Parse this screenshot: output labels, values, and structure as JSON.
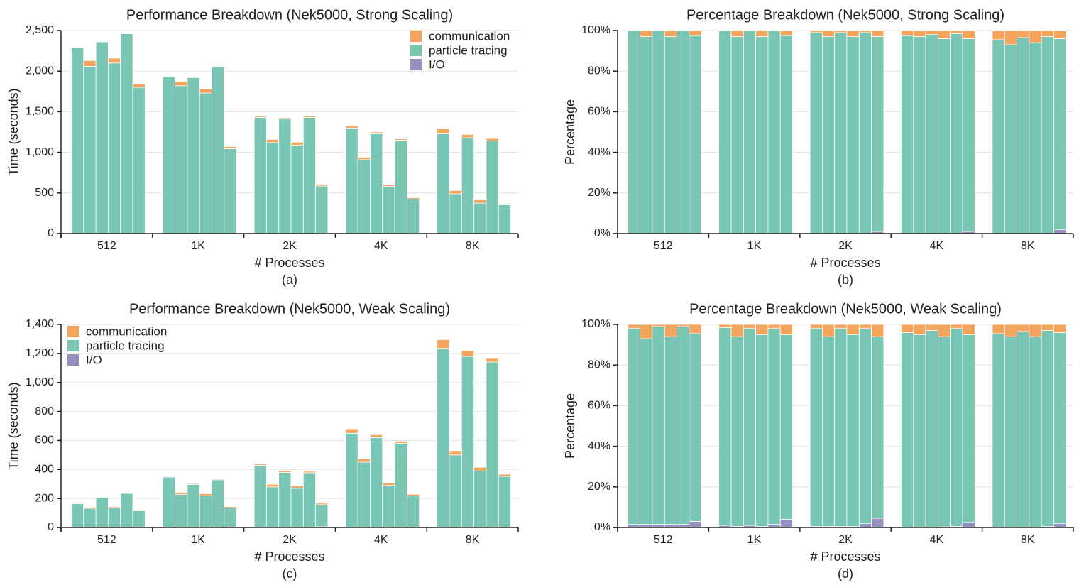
{
  "colors": {
    "communication": "#f5a55b",
    "particle_tracing": "#79c6b5",
    "io": "#9490c0",
    "grid": "#e1e1e1",
    "axis": "#222222"
  },
  "chart_data": [
    {
      "id": "a",
      "type": "bar",
      "stacked": true,
      "title": "Performance Breakdown (Nek5000, Strong Scaling)",
      "xlabel": "# Processes",
      "ylabel": "Time (seconds)",
      "caption": "(a)",
      "ylim": [
        0,
        2500
      ],
      "yticks": [
        0,
        500,
        1000,
        1500,
        2000,
        2500
      ],
      "ytick_labels": [
        "0",
        "500",
        "1,000",
        "1,500",
        "2,000",
        "2,500"
      ],
      "groups": [
        "512",
        "1K",
        "2K",
        "4K",
        "8K"
      ],
      "legend": {
        "position": "top-right",
        "entries": [
          "communication",
          "particle tracing",
          "I/O"
        ]
      },
      "series": [
        {
          "name": "communication",
          "color_key": "communication",
          "values": [
            [
              0,
              70,
              0,
              60,
              0,
              40
            ],
            [
              0,
              50,
              0,
              50,
              0,
              25
            ],
            [
              15,
              40,
              15,
              35,
              15,
              20
            ],
            [
              30,
              30,
              20,
              20,
              15,
              15
            ],
            [
              60,
              40,
              40,
              40,
              30,
              15
            ]
          ]
        },
        {
          "name": "particle tracing",
          "color_key": "particle_tracing",
          "values": [
            [
              2290,
              2060,
              2360,
              2100,
              2460,
              1800
            ],
            [
              1930,
              1820,
              1920,
              1730,
              2050,
              1045
            ],
            [
              1430,
              1120,
              1410,
              1090,
              1430,
              580
            ],
            [
              1300,
              910,
              1230,
              580,
              1150,
              420
            ],
            [
              1230,
              490,
              1180,
              375,
              1140,
              350
            ]
          ]
        },
        {
          "name": "I/O",
          "color_key": "io",
          "values": [
            [
              0,
              0,
              0,
              0,
              0,
              0
            ],
            [
              0,
              0,
              0,
              0,
              0,
              0
            ],
            [
              0,
              0,
              0,
              0,
              0,
              5
            ],
            [
              0,
              0,
              0,
              0,
              0,
              5
            ],
            [
              0,
              0,
              0,
              0,
              0,
              5
            ]
          ]
        }
      ]
    },
    {
      "id": "b",
      "type": "bar",
      "stacked": true,
      "title": "Percentage Breakdown (Nek5000, Strong Scaling)",
      "xlabel": "# Processes",
      "ylabel": "Percentage",
      "caption": "(b)",
      "ylim": [
        0,
        100
      ],
      "yticks": [
        0,
        20,
        40,
        60,
        80,
        100
      ],
      "ytick_labels": [
        "0%",
        "20%",
        "40%",
        "60%",
        "80%",
        "100%"
      ],
      "groups": [
        "512",
        "1K",
        "2K",
        "4K",
        "8K"
      ],
      "series": [
        {
          "name": "communication",
          "color_key": "communication",
          "values": [
            [
              0,
              3,
              0,
              3,
              0,
              2.5
            ],
            [
              0,
              3,
              0,
              3,
              0,
              2.5
            ],
            [
              1,
              3,
              1,
              3,
              1,
              3
            ],
            [
              2.5,
              3,
              2,
              4,
              1.5,
              4
            ],
            [
              4.5,
              7,
              3.5,
              6,
              3,
              4
            ]
          ]
        },
        {
          "name": "particle tracing",
          "color_key": "particle_tracing",
          "values": [
            [
              100,
              97,
              100,
              97,
              100,
              97.5
            ],
            [
              100,
              97,
              100,
              97,
              100,
              97.5
            ],
            [
              99,
              97,
              99,
              97,
              99,
              96
            ],
            [
              97.5,
              97,
              98,
              96,
              98.5,
              95
            ],
            [
              95.5,
              93,
              96.5,
              94,
              97,
              94
            ]
          ]
        },
        {
          "name": "I/O",
          "color_key": "io",
          "values": [
            [
              0,
              0,
              0,
              0,
              0,
              0
            ],
            [
              0,
              0,
              0,
              0,
              0,
              0
            ],
            [
              0,
              0,
              0,
              0,
              0,
              1
            ],
            [
              0,
              0,
              0,
              0,
              0,
              1
            ],
            [
              0,
              0,
              0,
              0,
              0,
              2
            ]
          ]
        }
      ]
    },
    {
      "id": "c",
      "type": "bar",
      "stacked": true,
      "title": "Performance Breakdown (Nek5000, Weak Scaling)",
      "xlabel": "# Processes",
      "ylabel": "Time (seconds)",
      "caption": "(c)",
      "ylim": [
        0,
        1400
      ],
      "yticks": [
        0,
        200,
        400,
        600,
        800,
        1000,
        1200,
        1400
      ],
      "ytick_labels": [
        "0",
        "200",
        "400",
        "600",
        "800",
        "1,000",
        "1,200",
        "1,400"
      ],
      "groups": [
        "512",
        "1K",
        "2K",
        "4K",
        "8K"
      ],
      "legend": {
        "position": "top-left",
        "entries": [
          "communication",
          "particle tracing",
          "I/O"
        ]
      },
      "series": [
        {
          "name": "communication",
          "color_key": "communication",
          "values": [
            [
              3,
              8,
              3,
              8,
              3,
              6
            ],
            [
              5,
              14,
              6,
              14,
              6,
              8
            ],
            [
              10,
              17,
              10,
              17,
              10,
              10
            ],
            [
              30,
              22,
              20,
              20,
              15,
              12
            ],
            [
              60,
              30,
              40,
              25,
              30,
              15
            ]
          ]
        },
        {
          "name": "particle tracing",
          "color_key": "particle_tracing",
          "values": [
            [
              162,
              130,
              205,
              132,
              233,
              112
            ],
            [
              346,
              226,
              296,
              218,
              328,
              132
            ],
            [
              428,
              279,
              379,
              269,
              376,
              152
            ],
            [
              650,
              450,
              620,
              290,
              580,
              215
            ],
            [
              1235,
              500,
              1180,
              390,
              1140,
              350
            ]
          ]
        },
        {
          "name": "I/O",
          "color_key": "io",
          "values": [
            [
              2,
              2,
              2,
              2,
              2,
              3
            ],
            [
              1,
              1,
              1,
              1,
              1,
              3
            ],
            [
              1,
              1,
              1,
              1,
              1,
              5
            ],
            [
              0,
              0,
              0,
              0,
              0,
              2
            ],
            [
              0,
              0,
              0,
              0,
              0,
              2
            ]
          ]
        }
      ]
    },
    {
      "id": "d",
      "type": "bar",
      "stacked": true,
      "title": "Percentage Breakdown (Nek5000, Weak Scaling)",
      "xlabel": "# Processes",
      "ylabel": "Percentage",
      "caption": "(d)",
      "ylim": [
        0,
        100
      ],
      "yticks": [
        0,
        20,
        40,
        60,
        80,
        100
      ],
      "ytick_labels": [
        "0%",
        "20%",
        "40%",
        "60%",
        "80%",
        "100%"
      ],
      "groups": [
        "512",
        "1K",
        "2K",
        "4K",
        "8K"
      ],
      "series": [
        {
          "name": "communication",
          "color_key": "communication",
          "values": [
            [
              2,
              7,
              1,
              6,
              1,
              4.5
            ],
            [
              1.5,
              6,
              2,
              5,
              2,
              5
            ],
            [
              2,
              6,
              2,
              5,
              2,
              6
            ],
            [
              4,
              5,
              3,
              6,
              2,
              5
            ],
            [
              4.5,
              6,
              3.5,
              6,
              3,
              4
            ]
          ]
        },
        {
          "name": "particle tracing",
          "color_key": "particle_tracing",
          "values": [
            [
              96.5,
              91.5,
              97.5,
              92.5,
              97.5,
              92.5
            ],
            [
              97.5,
              93.5,
              97,
              94.5,
              96.5,
              91
            ],
            [
              97.5,
              93.5,
              97.5,
              94.5,
              96,
              89.5
            ],
            [
              96,
              95,
              97,
              93.7,
              97.5,
              92.5
            ],
            [
              95.5,
              94,
              96.5,
              94,
              96.5,
              94
            ]
          ]
        },
        {
          "name": "I/O",
          "color_key": "io",
          "values": [
            [
              1.5,
              1.5,
              1.5,
              1.5,
              1.5,
              3
            ],
            [
              1,
              0.5,
              1,
              0.5,
              1.5,
              4
            ],
            [
              0.5,
              0.5,
              0.5,
              0.5,
              2,
              4.5
            ],
            [
              0,
              0,
              0,
              0.3,
              0.5,
              2.5
            ],
            [
              0,
              0,
              0,
              0,
              0.5,
              2
            ]
          ]
        }
      ]
    }
  ]
}
